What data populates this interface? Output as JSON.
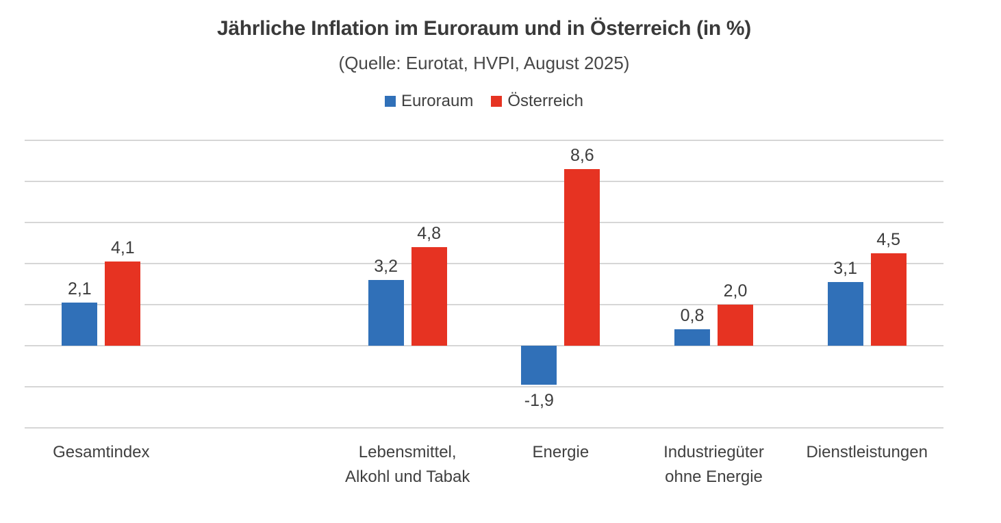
{
  "chart_data": {
    "type": "bar",
    "title": "Jährliche Inflation im Euroraum und in Österreich (in %)",
    "subtitle": "(Quelle: Eurotat, HVPI, August 2025)",
    "legend_position": "top",
    "grid": true,
    "grid_color": "#d6d6d6",
    "background_color": "#ffffff",
    "ylim": [
      -4,
      10
    ],
    "grid_step": 2,
    "y_axis_labels_visible": false,
    "categories": [
      "Gesamtindex",
      "",
      "Lebensmittel,\nAlkohl und Tabak",
      "Energie",
      "Industriegüter\nohne Energie",
      "Dienstleistungen"
    ],
    "series": [
      {
        "name": "Euroraum",
        "color": "#3070b8",
        "values": [
          2.1,
          null,
          3.2,
          -1.9,
          0.8,
          3.1
        ],
        "labels": [
          "2,1",
          null,
          "3,2",
          "-1,9",
          "0,8",
          "3,1"
        ]
      },
      {
        "name": "Österreich",
        "color": "#e63322",
        "values": [
          4.1,
          null,
          4.8,
          8.6,
          2.0,
          4.5
        ],
        "labels": [
          "4,1",
          null,
          "4,8",
          "8,6",
          "2,0",
          "4,5"
        ]
      }
    ]
  }
}
